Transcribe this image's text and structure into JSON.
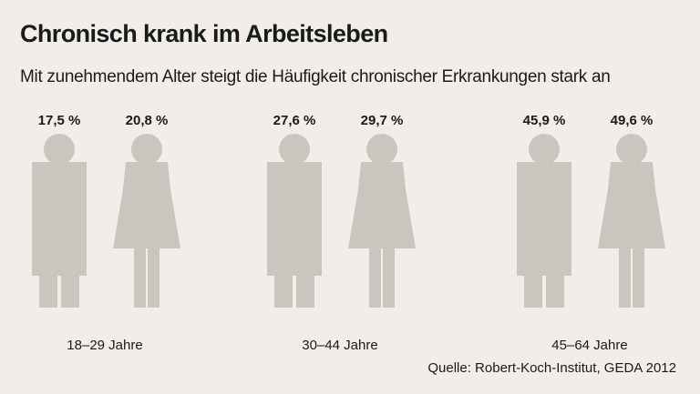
{
  "title": "Chronisch krank im Arbeitsleben",
  "subtitle": "Mit zunehmendem Alter steigt die Häufigkeit chronischer Erkrankungen stark an",
  "source": "Quelle: Robert-Koch-Institut, GEDA 2012",
  "colors": {
    "body": "#c8c6be",
    "fill": "#ede45c",
    "background": "#f1eeea"
  },
  "chart_data": {
    "type": "bar",
    "title": "Chronisch krank im Arbeitsleben",
    "subtitle": "Mit zunehmendem Alter steigt die Häufigkeit chronischer Erkrankungen stark an",
    "categories": [
      "18–29 Jahre",
      "30–44 Jahre",
      "45–64 Jahre"
    ],
    "series": [
      {
        "name": "",
        "icon": "male-figure-icon",
        "values": [
          17.5,
          27.6,
          45.9
        ],
        "labels": [
          "17,5 %",
          "27,6 %",
          "45,9 %"
        ]
      },
      {
        "name": "",
        "icon": "female-figure-icon",
        "values": [
          20.8,
          29.7,
          49.6
        ],
        "labels": [
          "20,8 %",
          "29,7 %",
          "49,6 %"
        ]
      }
    ],
    "unit": "%",
    "ylim": [
      0,
      100
    ]
  }
}
